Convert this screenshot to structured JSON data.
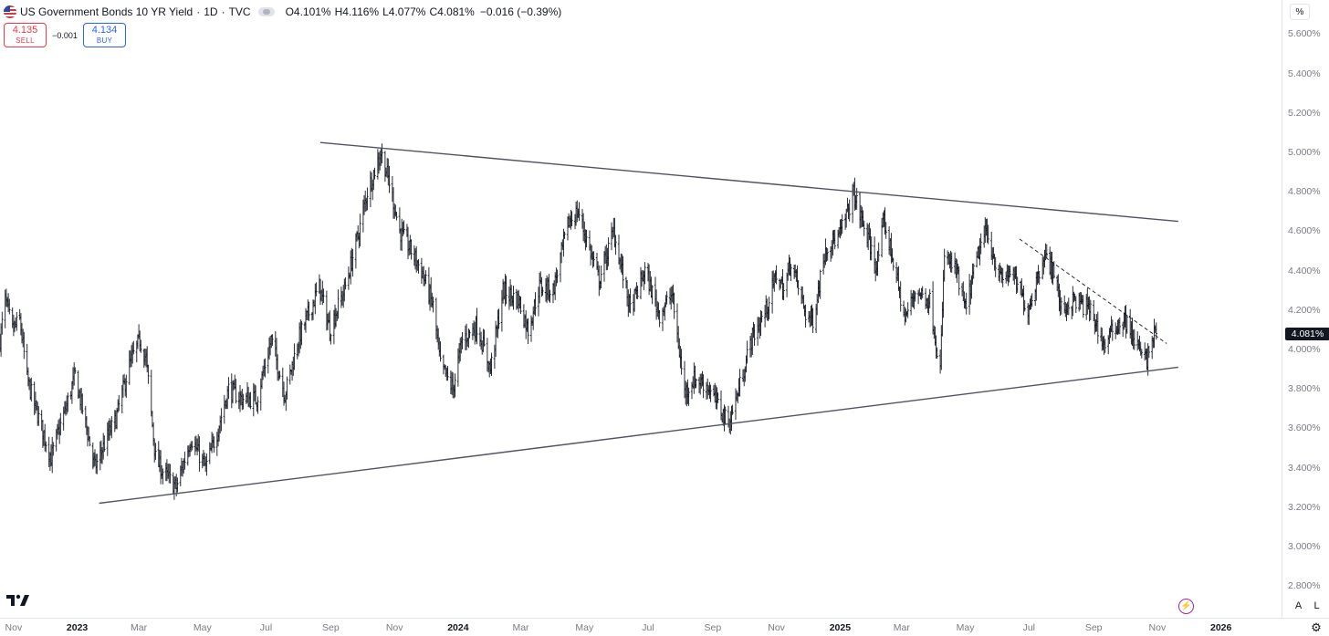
{
  "legend": {
    "title": "US Government Bonds 10 YR Yield",
    "interval": "1D",
    "source": "TVC",
    "o_label": "O",
    "o_value": "4.101%",
    "h_label": "H",
    "h_value": "4.116%",
    "l_label": "L",
    "l_value": "4.077%",
    "c_label": "C",
    "c_value": "4.081%",
    "change": "−0.016 (−0.39%)"
  },
  "trade": {
    "sell_price": "4.135",
    "sell_label": "SELL",
    "spread": "−0.001",
    "buy_price": "4.134",
    "buy_label": "BUY"
  },
  "scale": {
    "unit_button": "%",
    "auto_button": "A",
    "log_button": "L"
  },
  "colors": {
    "bars": "#131722",
    "trendline": "#505461",
    "sell": "#f23645",
    "buy": "#2962ff",
    "last_price_bg": "#131722"
  },
  "chart_data": {
    "type": "ohlc-bar",
    "title": "US Government Bonds 10 YR Yield",
    "interval": "1D",
    "ylim": [
      2.7,
      5.7
    ],
    "xlim": [
      "2022-10-19",
      "2026-02-28"
    ],
    "y_tick_labels": [
      "5.600%",
      "5.400%",
      "5.200%",
      "5.000%",
      "4.800%",
      "4.600%",
      "4.400%",
      "4.200%",
      "4.000%",
      "3.800%",
      "3.600%",
      "3.400%",
      "3.200%",
      "3.000%",
      "2.800%"
    ],
    "x_tick_labels": [
      {
        "label": "Nov",
        "date": "2022-11-01"
      },
      {
        "label": "2023",
        "date": "2023-01-01",
        "year": true
      },
      {
        "label": "Mar",
        "date": "2023-03-01"
      },
      {
        "label": "May",
        "date": "2023-05-01"
      },
      {
        "label": "Jul",
        "date": "2023-07-01"
      },
      {
        "label": "Sep",
        "date": "2023-09-01"
      },
      {
        "label": "Nov",
        "date": "2023-11-01"
      },
      {
        "label": "2024",
        "date": "2024-01-01",
        "year": true
      },
      {
        "label": "Mar",
        "date": "2024-03-01"
      },
      {
        "label": "May",
        "date": "2024-05-01"
      },
      {
        "label": "Jul",
        "date": "2024-07-01"
      },
      {
        "label": "Sep",
        "date": "2024-09-01"
      },
      {
        "label": "Nov",
        "date": "2024-11-01"
      },
      {
        "label": "2025",
        "date": "2025-01-01",
        "year": true
      },
      {
        "label": "Mar",
        "date": "2025-03-01"
      },
      {
        "label": "May",
        "date": "2025-05-01"
      },
      {
        "label": "Jul",
        "date": "2025-07-01"
      },
      {
        "label": "Sep",
        "date": "2025-09-01"
      },
      {
        "label": "Nov",
        "date": "2025-11-01"
      },
      {
        "label": "2026",
        "date": "2026-01-01",
        "year": true
      }
    ],
    "last_price_label": "4.081%",
    "last_price": 4.081,
    "price_path": [
      [
        "2022-10-19",
        4.05
      ],
      [
        "2022-10-24",
        4.25
      ],
      [
        "2022-10-31",
        4.1
      ],
      [
        "2022-11-07",
        4.15
      ],
      [
        "2022-11-14",
        3.85
      ],
      [
        "2022-11-21",
        3.72
      ],
      [
        "2022-12-01",
        3.55
      ],
      [
        "2022-12-07",
        3.45
      ],
      [
        "2022-12-15",
        3.6
      ],
      [
        "2022-12-21",
        3.7
      ],
      [
        "2022-12-30",
        3.87
      ],
      [
        "2023-01-10",
        3.6
      ],
      [
        "2023-01-18",
        3.4
      ],
      [
        "2023-01-27",
        3.52
      ],
      [
        "2023-02-07",
        3.65
      ],
      [
        "2023-02-20",
        3.92
      ],
      [
        "2023-03-02",
        4.05
      ],
      [
        "2023-03-08",
        3.95
      ],
      [
        "2023-03-17",
        3.45
      ],
      [
        "2023-03-24",
        3.38
      ],
      [
        "2023-04-06",
        3.3
      ],
      [
        "2023-04-20",
        3.55
      ],
      [
        "2023-05-04",
        3.4
      ],
      [
        "2023-05-15",
        3.58
      ],
      [
        "2023-05-26",
        3.8
      ],
      [
        "2023-06-08",
        3.75
      ],
      [
        "2023-06-22",
        3.75
      ],
      [
        "2023-07-06",
        4.05
      ],
      [
        "2023-07-19",
        3.77
      ],
      [
        "2023-08-01",
        4.05
      ],
      [
        "2023-08-21",
        4.32
      ],
      [
        "2023-08-31",
        4.1
      ],
      [
        "2023-09-15",
        4.32
      ],
      [
        "2023-09-28",
        4.6
      ],
      [
        "2023-10-06",
        4.8
      ],
      [
        "2023-10-19",
        5.0
      ],
      [
        "2023-10-27",
        4.85
      ],
      [
        "2023-11-06",
        4.6
      ],
      [
        "2023-11-15",
        4.52
      ],
      [
        "2023-11-27",
        4.4
      ],
      [
        "2023-12-08",
        4.22
      ],
      [
        "2023-12-15",
        3.92
      ],
      [
        "2023-12-27",
        3.8
      ],
      [
        "2024-01-05",
        4.05
      ],
      [
        "2024-01-19",
        4.12
      ],
      [
        "2024-02-01",
        3.9
      ],
      [
        "2024-02-13",
        4.3
      ],
      [
        "2024-02-28",
        4.25
      ],
      [
        "2024-03-08",
        4.1
      ],
      [
        "2024-03-19",
        4.32
      ],
      [
        "2024-04-01",
        4.3
      ],
      [
        "2024-04-16",
        4.65
      ],
      [
        "2024-04-25",
        4.7
      ],
      [
        "2024-05-15",
        4.35
      ],
      [
        "2024-05-29",
        4.6
      ],
      [
        "2024-06-14",
        4.2
      ],
      [
        "2024-06-28",
        4.4
      ],
      [
        "2024-07-12",
        4.18
      ],
      [
        "2024-07-24",
        4.28
      ],
      [
        "2024-08-05",
        3.78
      ],
      [
        "2024-08-14",
        3.85
      ],
      [
        "2024-08-26",
        3.82
      ],
      [
        "2024-09-06",
        3.72
      ],
      [
        "2024-09-16",
        3.62
      ],
      [
        "2024-09-26",
        3.8
      ],
      [
        "2024-10-08",
        4.05
      ],
      [
        "2024-10-22",
        4.2
      ],
      [
        "2024-11-01",
        4.38
      ],
      [
        "2024-11-08",
        4.3
      ],
      [
        "2024-11-15",
        4.45
      ],
      [
        "2024-11-29",
        4.18
      ],
      [
        "2024-12-06",
        4.15
      ],
      [
        "2024-12-18",
        4.52
      ],
      [
        "2024-12-31",
        4.57
      ],
      [
        "2025-01-14",
        4.79
      ],
      [
        "2025-01-24",
        4.62
      ],
      [
        "2025-02-05",
        4.42
      ],
      [
        "2025-02-12",
        4.65
      ],
      [
        "2025-02-21",
        4.45
      ],
      [
        "2025-03-04",
        4.15
      ],
      [
        "2025-03-14",
        4.3
      ],
      [
        "2025-03-28",
        4.25
      ],
      [
        "2025-04-04",
        4.0
      ],
      [
        "2025-04-07",
        3.9
      ],
      [
        "2025-04-11",
        4.48
      ],
      [
        "2025-04-22",
        4.4
      ],
      [
        "2025-05-01",
        4.2
      ],
      [
        "2025-05-14",
        4.5
      ],
      [
        "2025-05-21",
        4.6
      ],
      [
        "2025-06-04",
        4.35
      ],
      [
        "2025-06-13",
        4.4
      ],
      [
        "2025-06-30",
        4.2
      ],
      [
        "2025-07-15",
        4.48
      ],
      [
        "2025-07-25",
        4.4
      ],
      [
        "2025-08-01",
        4.2
      ],
      [
        "2025-08-14",
        4.25
      ],
      [
        "2025-08-29",
        4.2
      ],
      [
        "2025-09-11",
        4.02
      ],
      [
        "2025-09-22",
        4.12
      ],
      [
        "2025-10-01",
        4.15
      ],
      [
        "2025-10-10",
        4.05
      ],
      [
        "2025-10-17",
        3.97
      ],
      [
        "2025-10-22",
        3.95
      ],
      [
        "2025-10-29",
        4.08
      ],
      [
        "2025-10-31",
        4.081
      ]
    ],
    "trendlines": [
      {
        "style": "solid",
        "points": [
          [
            "2023-08-22",
            5.05
          ],
          [
            "2025-11-21",
            4.65
          ]
        ]
      },
      {
        "style": "solid",
        "points": [
          [
            "2023-01-22",
            3.22
          ],
          [
            "2025-11-21",
            3.91
          ]
        ]
      },
      {
        "style": "dashed",
        "points": [
          [
            "2025-06-22",
            4.56
          ],
          [
            "2025-11-10",
            4.03
          ]
        ]
      }
    ]
  }
}
